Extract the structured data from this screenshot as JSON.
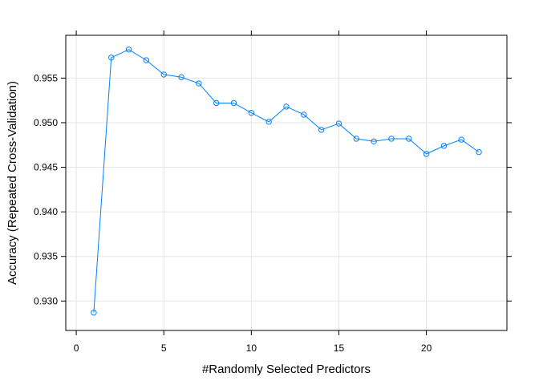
{
  "chart_data": {
    "type": "line",
    "title": "",
    "xlabel": "#Randomly Selected Predictors",
    "ylabel": "Accuracy (Repeated Cross-Validation)",
    "xlim": [
      -0.6,
      24.6
    ],
    "ylim": [
      0.9267,
      0.9598
    ],
    "xticks": [
      0,
      5,
      10,
      15,
      20
    ],
    "yticks": [
      0.93,
      0.935,
      0.94,
      0.945,
      0.95,
      0.955
    ],
    "ytick_labels": [
      "0.930",
      "0.935",
      "0.940",
      "0.945",
      "0.950",
      "0.955"
    ],
    "grid": true,
    "line_color": "#0080ff",
    "marker": "open-circle",
    "x": [
      1,
      2,
      3,
      4,
      5,
      6,
      7,
      8,
      9,
      10,
      11,
      12,
      13,
      14,
      15,
      16,
      17,
      18,
      19,
      20,
      21,
      22,
      23
    ],
    "y": [
      0.9287,
      0.9573,
      0.9582,
      0.957,
      0.9554,
      0.9551,
      0.9544,
      0.9522,
      0.9522,
      0.9511,
      0.9501,
      0.9518,
      0.9509,
      0.9492,
      0.9499,
      0.9482,
      0.9479,
      0.9482,
      0.9482,
      0.9465,
      0.9474,
      0.9481,
      0.9467
    ]
  }
}
